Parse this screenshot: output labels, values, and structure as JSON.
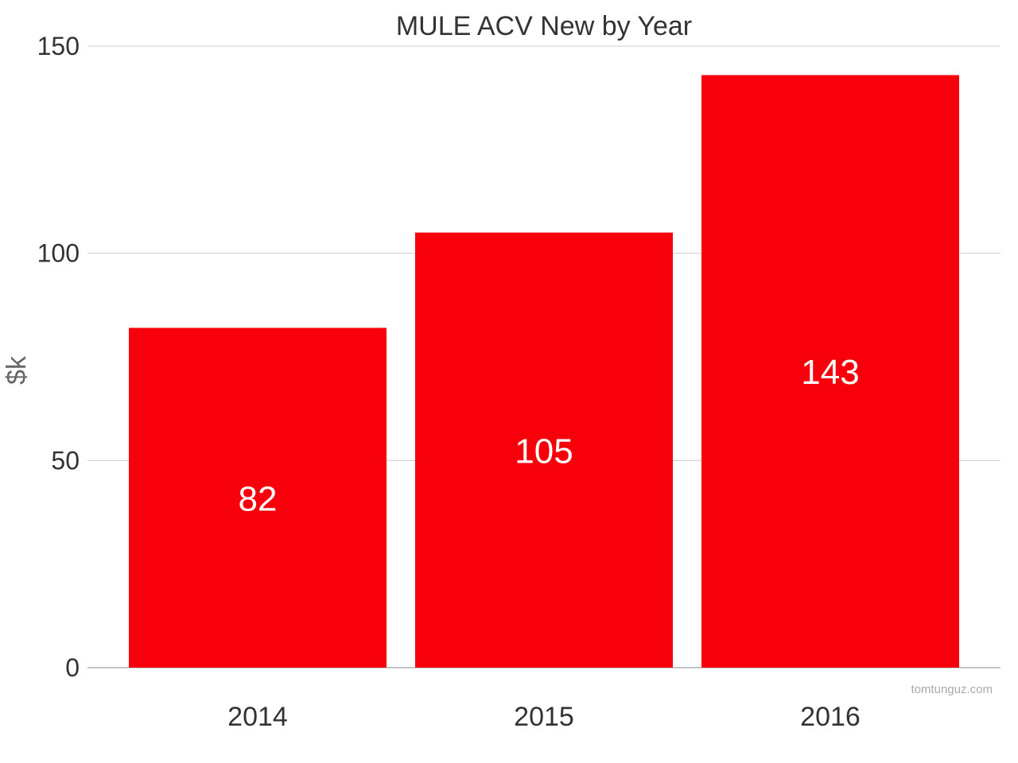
{
  "chart_data": {
    "type": "bar",
    "title": "MULE ACV New by Year",
    "xlabel": "",
    "ylabel": "$k",
    "categories": [
      "2014",
      "2015",
      "2016"
    ],
    "values": [
      82,
      105,
      143
    ],
    "data_labels": [
      "82",
      "105",
      "143"
    ],
    "ylim": [
      0,
      150
    ],
    "yticks": [
      0,
      50,
      100,
      150
    ],
    "ytick_labels": [
      "0",
      "50",
      "100",
      "150"
    ],
    "grid": true,
    "legend": "none",
    "bar_color": "#f7000b",
    "label_color": "#ffffff"
  },
  "watermark": "tomtunguz.com"
}
